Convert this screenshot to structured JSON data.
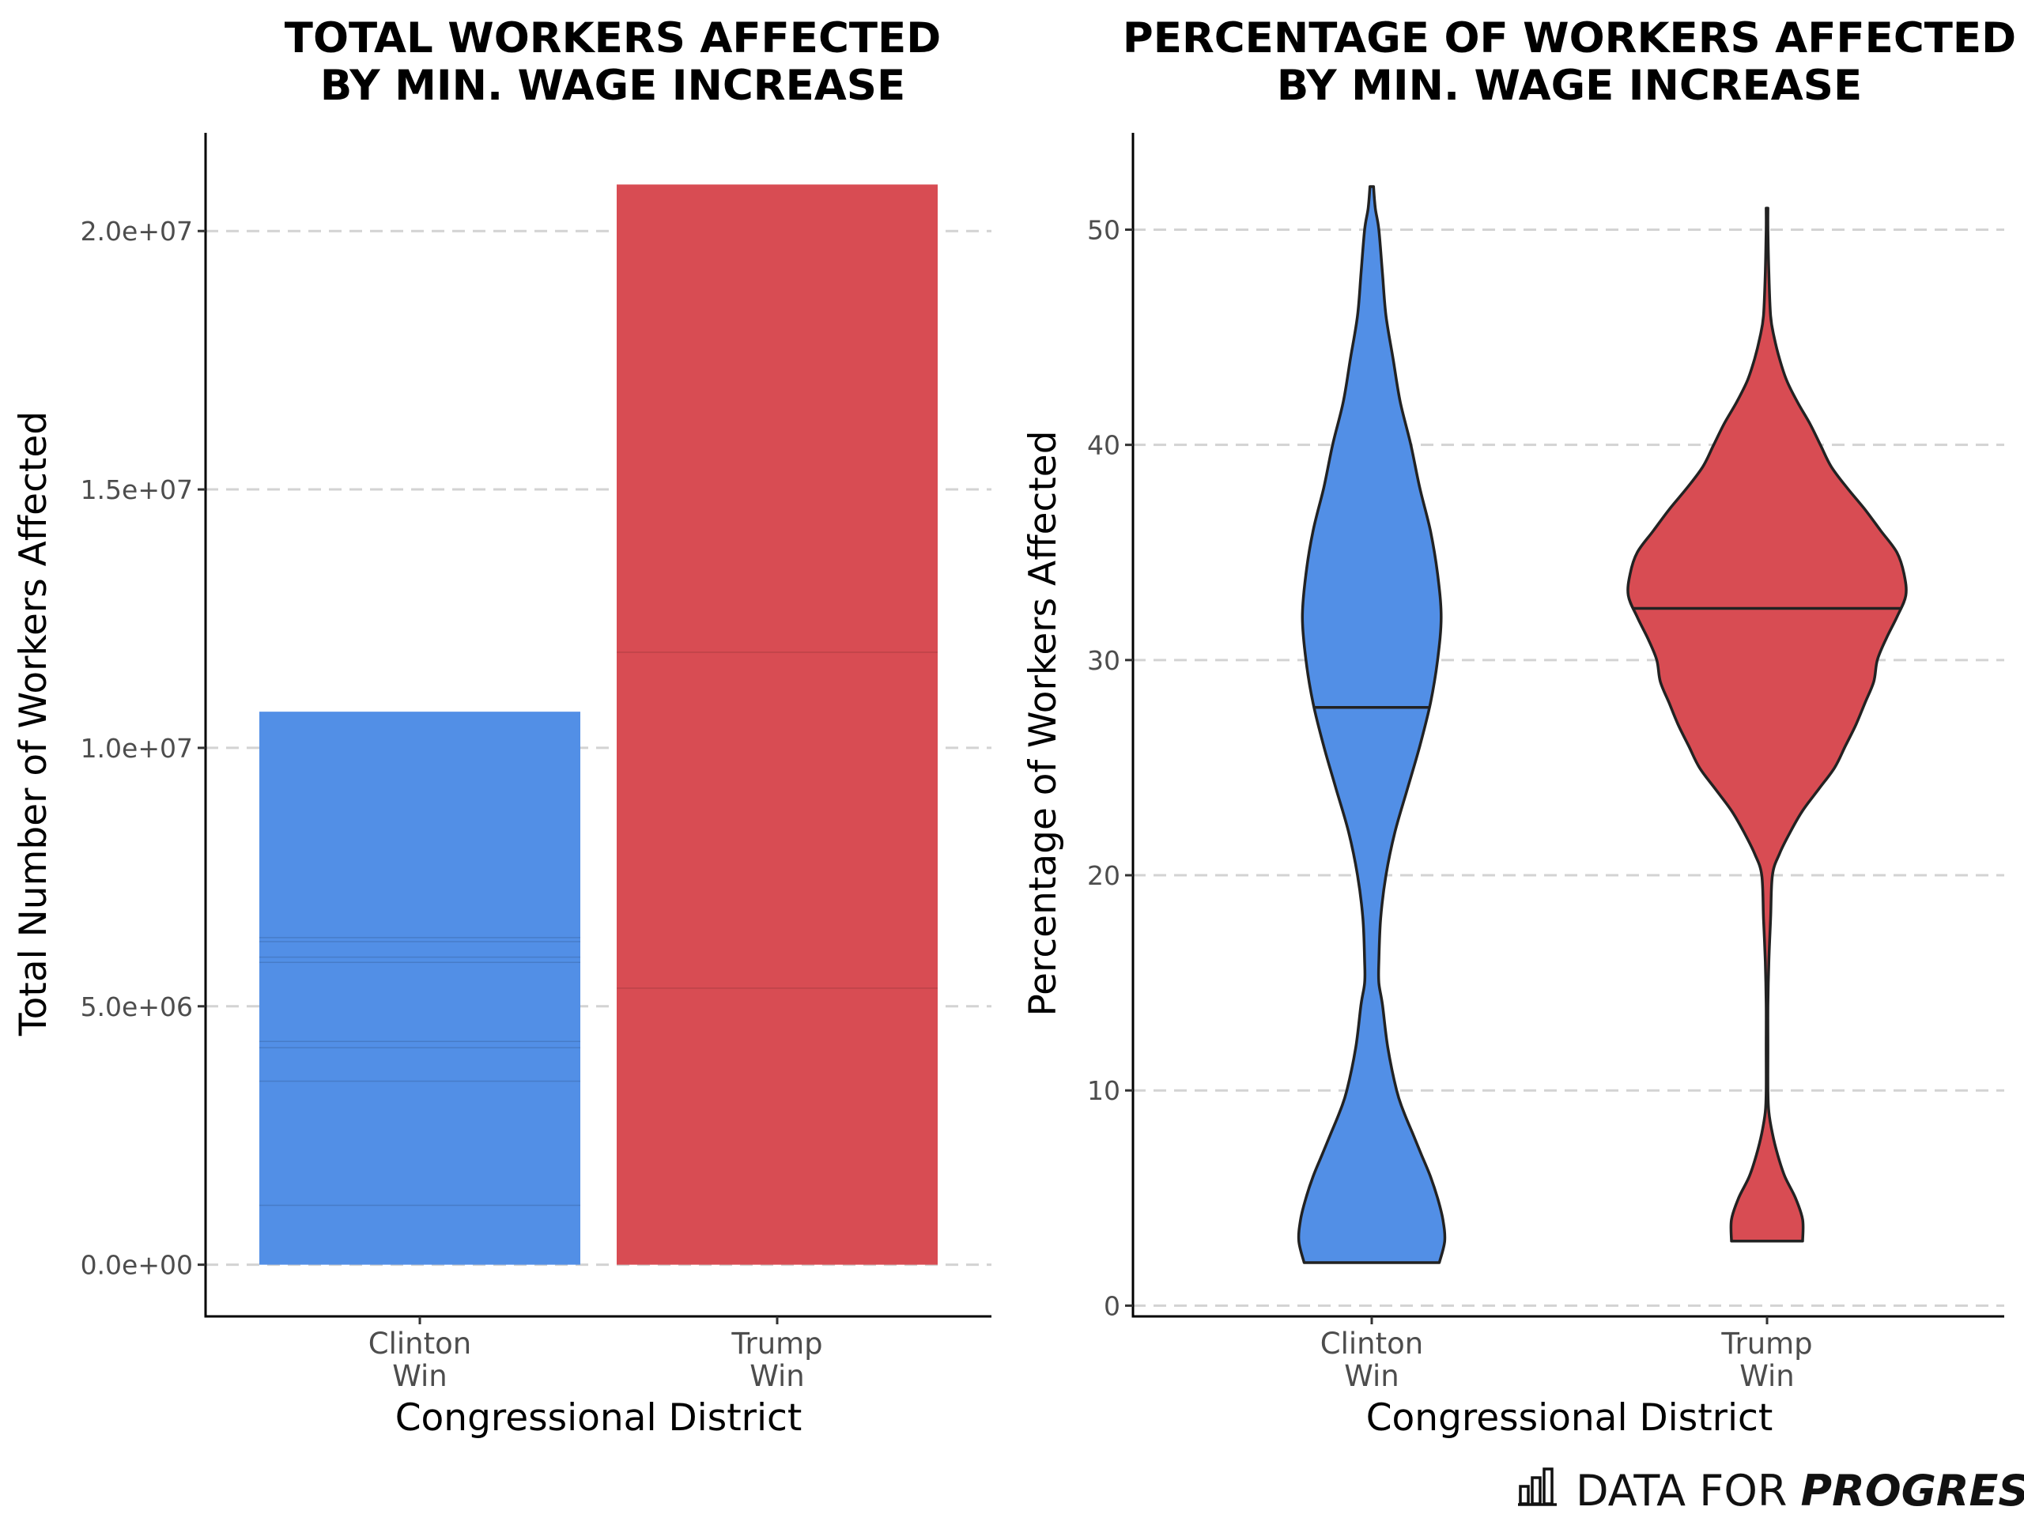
{
  "chart_data": [
    {
      "type": "bar",
      "title_lines": [
        "TOTAL WORKERS AFFECTED",
        "BY MIN. WAGE INCREASE"
      ],
      "xlabel": "Congressional District",
      "ylabel": "Total Number of Workers Affected",
      "categories": [
        [
          "Clinton",
          "Win"
        ],
        [
          "Trump",
          "Win"
        ]
      ],
      "values": [
        10700000,
        20900000
      ],
      "stack_boundaries": [
        [
          1150000,
          3550000,
          4200000,
          4320000,
          5850000,
          5950000,
          6250000,
          6330000
        ],
        [
          5350000,
          11850000
        ]
      ],
      "colors": [
        "#528fe6",
        "#d84c53"
      ],
      "yticks": [
        0,
        5000000,
        10000000,
        15000000,
        20000000
      ],
      "ytick_labels": [
        "0.0e+00",
        "5.0e+06",
        "1.0e+07",
        "1.5e+07",
        "2.0e+07"
      ],
      "ylim": [
        -1000000,
        21900000
      ],
      "grid": "horizontal dashed"
    },
    {
      "type": "violin",
      "title_lines": [
        "PERCENTAGE OF WORKERS AFFECTED",
        "BY MIN. WAGE INCREASE"
      ],
      "xlabel": "Congressional District",
      "ylabel": "Percentage of Workers Affected",
      "categories": [
        [
          "Clinton",
          "Win"
        ],
        [
          "Trump",
          "Win"
        ]
      ],
      "colors": [
        "#528fe6",
        "#d84c53"
      ],
      "yticks": [
        0,
        10,
        20,
        30,
        40,
        50
      ],
      "ylim": [
        -0.5,
        54.5
      ],
      "grid": "horizontal dashed",
      "series": [
        {
          "min": 2,
          "max": 52,
          "median": 27.8,
          "profile": [
            [
              2,
              0.38
            ],
            [
              3,
              0.41
            ],
            [
              4,
              0.4
            ],
            [
              5,
              0.37
            ],
            [
              6,
              0.33
            ],
            [
              7,
              0.28
            ],
            [
              8,
              0.23
            ],
            [
              9,
              0.18
            ],
            [
              10,
              0.14
            ],
            [
              12,
              0.09
            ],
            [
              14,
              0.06
            ],
            [
              15,
              0.04
            ],
            [
              16,
              0.04
            ],
            [
              18,
              0.05
            ],
            [
              20,
              0.08
            ],
            [
              22,
              0.13
            ],
            [
              24,
              0.2
            ],
            [
              26,
              0.27
            ],
            [
              28,
              0.33
            ],
            [
              30,
              0.37
            ],
            [
              32,
              0.39
            ],
            [
              34,
              0.37
            ],
            [
              36,
              0.33
            ],
            [
              38,
              0.27
            ],
            [
              40,
              0.22
            ],
            [
              42,
              0.16
            ],
            [
              44,
              0.12
            ],
            [
              46,
              0.08
            ],
            [
              48,
              0.06
            ],
            [
              50,
              0.04
            ],
            [
              51,
              0.02
            ],
            [
              52,
              0.01
            ]
          ]
        },
        {
          "min": 3,
          "max": 51,
          "median": 32.4,
          "profile": [
            [
              3,
              0.2
            ],
            [
              4,
              0.2
            ],
            [
              5,
              0.16
            ],
            [
              6,
              0.1
            ],
            [
              7,
              0.06
            ],
            [
              8,
              0.03
            ],
            [
              9,
              0.01
            ],
            [
              10,
              0.005
            ],
            [
              12,
              0.005
            ],
            [
              14,
              0.005
            ],
            [
              16,
              0.01
            ],
            [
              18,
              0.02
            ],
            [
              20,
              0.03
            ],
            [
              21,
              0.07
            ],
            [
              22,
              0.13
            ],
            [
              23,
              0.2
            ],
            [
              24,
              0.29
            ],
            [
              25,
              0.38
            ],
            [
              26,
              0.44
            ],
            [
              27,
              0.5
            ],
            [
              28,
              0.55
            ],
            [
              29,
              0.6
            ],
            [
              30,
              0.62
            ],
            [
              31,
              0.67
            ],
            [
              32,
              0.73
            ],
            [
              33,
              0.78
            ],
            [
              34,
              0.77
            ],
            [
              35,
              0.73
            ],
            [
              36,
              0.64
            ],
            [
              37,
              0.55
            ],
            [
              38,
              0.45
            ],
            [
              39,
              0.36
            ],
            [
              40,
              0.3
            ],
            [
              41,
              0.24
            ],
            [
              42,
              0.17
            ],
            [
              43,
              0.11
            ],
            [
              44,
              0.07
            ],
            [
              45,
              0.04
            ],
            [
              46,
              0.02
            ],
            [
              48,
              0.01
            ],
            [
              50,
              0.005
            ],
            [
              51,
              0.005
            ]
          ]
        }
      ]
    }
  ],
  "brand": {
    "prefix": "DATA FOR ",
    "emphasis": "PROGRESS",
    "icon": "bar-chart-logo-icon"
  }
}
